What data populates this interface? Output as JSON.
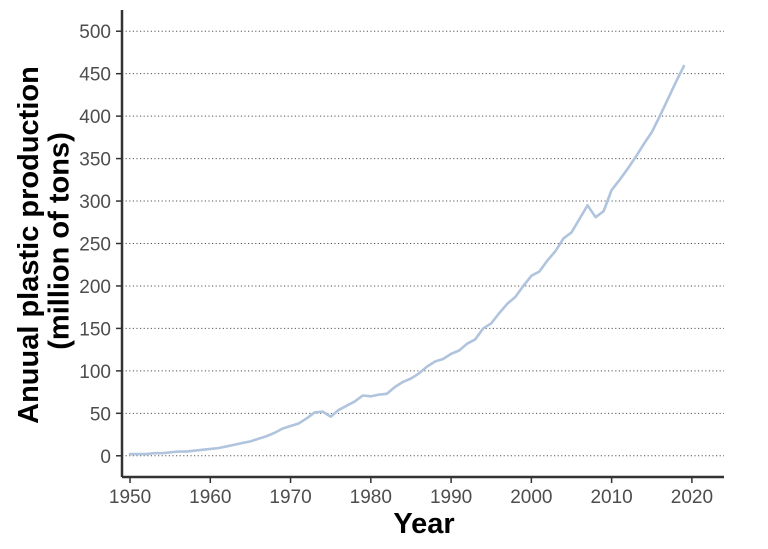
{
  "chart_data": {
    "type": "line",
    "xlabel": "Year",
    "ylabel_lines": [
      "Anuual plastic production",
      "(million of tons)"
    ],
    "xlim": [
      1949,
      2024
    ],
    "ylim": [
      -25,
      525
    ],
    "xticks": [
      1950,
      1960,
      1970,
      1980,
      1990,
      2000,
      2010,
      2020
    ],
    "yticks": [
      0,
      50,
      100,
      150,
      200,
      250,
      300,
      350,
      400,
      450,
      500
    ],
    "grid": "horizontal dotted",
    "line_color": "#b0c4de",
    "series": [
      {
        "x": [
          1950,
          1951,
          1952,
          1953,
          1954,
          1955,
          1956,
          1957,
          1958,
          1959,
          1960,
          1961,
          1962,
          1963,
          1964,
          1965,
          1966,
          1967,
          1968,
          1969,
          1970,
          1971,
          1972,
          1973,
          1974,
          1975,
          1976,
          1977,
          1978,
          1979,
          1980,
          1981,
          1982,
          1983,
          1984,
          1985,
          1986,
          1987,
          1988,
          1989,
          1990,
          1991,
          1992,
          1993,
          1994,
          1995,
          1996,
          1997,
          1998,
          1999,
          2000,
          2001,
          2002,
          2003,
          2004,
          2005,
          2006,
          2007,
          2008,
          2009,
          2010,
          2011,
          2012,
          2013,
          2014,
          2015,
          2016,
          2017,
          2018,
          2019
        ],
        "values": [
          2,
          2,
          2,
          3,
          3,
          4,
          5,
          5,
          6,
          7,
          8,
          9,
          11,
          13,
          15,
          17,
          20,
          23,
          27,
          32,
          35,
          38,
          44,
          51,
          52,
          46,
          54,
          59,
          64,
          71,
          70,
          72,
          73,
          81,
          87,
          91,
          97,
          105,
          111,
          114,
          120,
          124,
          132,
          137,
          150,
          156,
          168,
          179,
          187,
          200,
          212,
          217,
          230,
          241,
          256,
          263,
          279,
          295,
          281,
          288,
          313,
          325,
          338,
          352,
          367,
          381,
          400,
          420,
          440,
          459
        ]
      }
    ]
  }
}
